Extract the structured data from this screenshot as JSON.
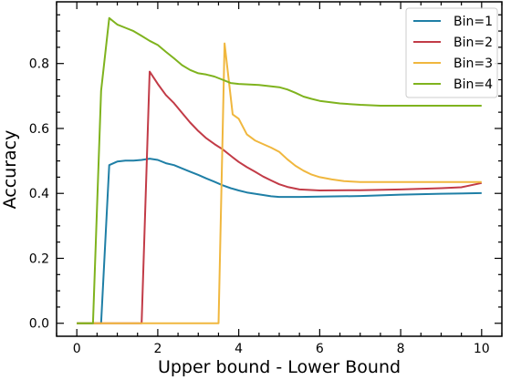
{
  "chart_data": {
    "type": "line",
    "title": "",
    "xlabel": "Upper bound - Lower Bound",
    "ylabel": "Accuracy",
    "xlim": [
      -0.5,
      10.5
    ],
    "ylim": [
      -0.04,
      0.99
    ],
    "xticks": [
      0,
      2,
      4,
      6,
      8,
      10
    ],
    "xtick_labels": [
      "0",
      "2",
      "4",
      "6",
      "8",
      "10"
    ],
    "yticks": [
      0.0,
      0.2,
      0.4,
      0.6,
      0.8
    ],
    "ytick_labels": [
      "0.0",
      "0.2",
      "0.4",
      "0.6",
      "0.8"
    ],
    "grid": false,
    "legend_position": "top-right",
    "series": [
      {
        "name": "Bin=1",
        "color": "#1f7fa6",
        "points": [
          [
            0,
            0
          ],
          [
            0.6,
            0
          ],
          [
            0.8,
            0.487
          ],
          [
            1.0,
            0.498
          ],
          [
            1.2,
            0.501
          ],
          [
            1.4,
            0.501
          ],
          [
            1.6,
            0.503
          ],
          [
            1.8,
            0.507
          ],
          [
            2.0,
            0.503
          ],
          [
            2.2,
            0.493
          ],
          [
            2.4,
            0.487
          ],
          [
            2.6,
            0.477
          ],
          [
            2.8,
            0.467
          ],
          [
            3.0,
            0.457
          ],
          [
            3.2,
            0.446
          ],
          [
            3.4,
            0.436
          ],
          [
            3.6,
            0.425
          ],
          [
            3.8,
            0.416
          ],
          [
            4.0,
            0.409
          ],
          [
            4.2,
            0.403
          ],
          [
            4.4,
            0.399
          ],
          [
            4.6,
            0.395
          ],
          [
            4.8,
            0.391
          ],
          [
            5.0,
            0.389
          ],
          [
            5.5,
            0.389
          ],
          [
            6.0,
            0.39
          ],
          [
            7.0,
            0.392
          ],
          [
            8.0,
            0.396
          ],
          [
            9.0,
            0.399
          ],
          [
            10.0,
            0.401
          ]
        ]
      },
      {
        "name": "Bin=2",
        "color": "#c23b47",
        "points": [
          [
            0,
            0
          ],
          [
            1.6,
            0
          ],
          [
            1.8,
            0.775
          ],
          [
            2.0,
            0.737
          ],
          [
            2.2,
            0.703
          ],
          [
            2.4,
            0.678
          ],
          [
            2.6,
            0.648
          ],
          [
            2.8,
            0.618
          ],
          [
            3.0,
            0.592
          ],
          [
            3.2,
            0.57
          ],
          [
            3.4,
            0.552
          ],
          [
            3.6,
            0.536
          ],
          [
            3.8,
            0.516
          ],
          [
            4.0,
            0.497
          ],
          [
            4.2,
            0.481
          ],
          [
            4.4,
            0.467
          ],
          [
            4.6,
            0.452
          ],
          [
            4.8,
            0.44
          ],
          [
            5.0,
            0.428
          ],
          [
            5.2,
            0.42
          ],
          [
            5.5,
            0.412
          ],
          [
            6.0,
            0.409
          ],
          [
            7.0,
            0.41
          ],
          [
            8.0,
            0.412
          ],
          [
            9.0,
            0.416
          ],
          [
            9.5,
            0.419
          ],
          [
            10.0,
            0.432
          ]
        ]
      },
      {
        "name": "Bin=3",
        "color": "#f0b73e",
        "points": [
          [
            0,
            0
          ],
          [
            3.5,
            0
          ],
          [
            3.65,
            0.862
          ],
          [
            3.85,
            0.643
          ],
          [
            4.0,
            0.63
          ],
          [
            4.2,
            0.582
          ],
          [
            4.4,
            0.563
          ],
          [
            4.6,
            0.552
          ],
          [
            4.8,
            0.541
          ],
          [
            5.0,
            0.528
          ],
          [
            5.2,
            0.505
          ],
          [
            5.4,
            0.485
          ],
          [
            5.6,
            0.47
          ],
          [
            5.8,
            0.458
          ],
          [
            6.0,
            0.45
          ],
          [
            6.3,
            0.443
          ],
          [
            6.6,
            0.438
          ],
          [
            7.0,
            0.435
          ],
          [
            8.0,
            0.435
          ],
          [
            9.0,
            0.435
          ],
          [
            10.0,
            0.435
          ]
        ]
      },
      {
        "name": "Bin=4",
        "color": "#7fb31e",
        "points": [
          [
            0,
            0
          ],
          [
            0.4,
            0
          ],
          [
            0.6,
            0.716
          ],
          [
            0.8,
            0.94
          ],
          [
            1.0,
            0.92
          ],
          [
            1.2,
            0.91
          ],
          [
            1.4,
            0.9
          ],
          [
            1.6,
            0.885
          ],
          [
            1.8,
            0.87
          ],
          [
            2.0,
            0.857
          ],
          [
            2.2,
            0.836
          ],
          [
            2.4,
            0.816
          ],
          [
            2.6,
            0.795
          ],
          [
            2.8,
            0.78
          ],
          [
            3.0,
            0.77
          ],
          [
            3.2,
            0.766
          ],
          [
            3.4,
            0.76
          ],
          [
            3.6,
            0.75
          ],
          [
            3.8,
            0.74
          ],
          [
            4.0,
            0.737
          ],
          [
            4.5,
            0.734
          ],
          [
            5.0,
            0.727
          ],
          [
            5.2,
            0.72
          ],
          [
            5.4,
            0.71
          ],
          [
            5.6,
            0.698
          ],
          [
            5.8,
            0.691
          ],
          [
            6.0,
            0.685
          ],
          [
            6.5,
            0.677
          ],
          [
            7.0,
            0.673
          ],
          [
            7.5,
            0.67
          ],
          [
            8.0,
            0.67
          ],
          [
            9.0,
            0.67
          ],
          [
            10.0,
            0.67
          ]
        ]
      }
    ]
  }
}
